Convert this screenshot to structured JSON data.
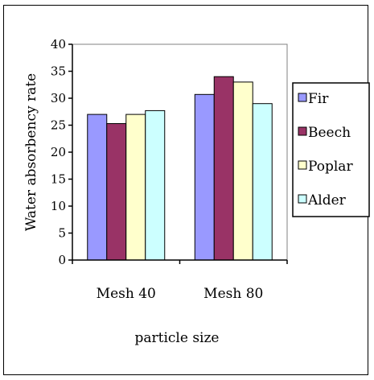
{
  "chart_data": {
    "type": "bar",
    "title": "",
    "xlabel": "particle size",
    "ylabel": "Water absorbency rate",
    "categories": [
      "Mesh 40",
      "Mesh 80"
    ],
    "ylim": [
      0,
      40
    ],
    "yticks": [
      0,
      5,
      10,
      15,
      20,
      25,
      30,
      35,
      40
    ],
    "grid": false,
    "legend_position": "right",
    "series": [
      {
        "name": "Fir",
        "color": "#9999ff",
        "values": [
          27.0,
          30.7
        ]
      },
      {
        "name": "Beech",
        "color": "#993366",
        "values": [
          25.3,
          34.0
        ]
      },
      {
        "name": "Poplar",
        "color": "#ffffcc",
        "values": [
          27.0,
          33.0
        ]
      },
      {
        "name": "Alder",
        "color": "#ccffff",
        "values": [
          27.7,
          29.0
        ]
      }
    ]
  }
}
